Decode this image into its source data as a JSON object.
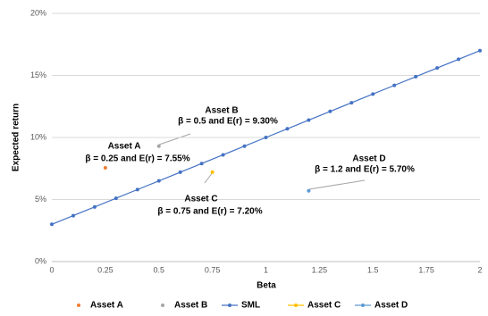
{
  "chart_data": {
    "type": "scatter",
    "x_label": "Beta",
    "y_label": "Expected return",
    "xlim": [
      0,
      2
    ],
    "xticks": [
      0,
      0.25,
      0.5,
      0.75,
      1,
      1.25,
      1.5,
      1.75,
      2
    ],
    "ylim": [
      0,
      20
    ],
    "yticks": [
      {
        "value": 0,
        "label": "0%"
      },
      {
        "value": 5,
        "label": "5%"
      },
      {
        "value": 10,
        "label": "10%"
      },
      {
        "value": 15,
        "label": "15%"
      },
      {
        "value": 20,
        "label": "20%"
      }
    ],
    "grid": true,
    "legend": "bottom",
    "series": [
      {
        "name": "Asset A",
        "color": "#ed7d31",
        "line": false,
        "x": [
          0.25
        ],
        "values": [
          7.55
        ]
      },
      {
        "name": "Asset B",
        "color": "#a5a5a5",
        "line": false,
        "x": [
          0.5
        ],
        "values": [
          9.3
        ]
      },
      {
        "name": "SML",
        "color": "#4472c4",
        "line": true,
        "x": [
          0,
          0.1,
          0.2,
          0.3,
          0.4,
          0.5,
          0.6,
          0.7,
          0.8,
          0.9,
          1,
          1.1,
          1.2,
          1.3,
          1.4,
          1.5,
          1.6,
          1.7,
          1.8,
          1.9,
          2
        ],
        "values": [
          3,
          3.7,
          4.4,
          5.1,
          5.8,
          6.5,
          7.2,
          7.9,
          8.6,
          9.3,
          10,
          10.7,
          11.4,
          12.1,
          12.8,
          13.5,
          14.2,
          14.9,
          15.6,
          16.3,
          17
        ]
      },
      {
        "name": "Asset C",
        "color": "#ffc000",
        "line": true,
        "x": [
          0.75
        ],
        "values": [
          7.2
        ]
      },
      {
        "name": "Asset D",
        "color": "#5b9bd5",
        "line": true,
        "x": [
          1.2
        ],
        "values": [
          5.7
        ]
      }
    ],
    "annotations": [
      {
        "title": "Asset A",
        "text": "β = 0.25 and E(r) = 7.55%"
      },
      {
        "title": "Asset B",
        "text": "β = 0.5 and E(r) = 9.30%"
      },
      {
        "title": "Asset C",
        "text": "β = 0.75 and E(r) = 7.20%"
      },
      {
        "title": "Asset D",
        "text": "β = 1.2 and E(r) = 5.70%"
      }
    ]
  }
}
